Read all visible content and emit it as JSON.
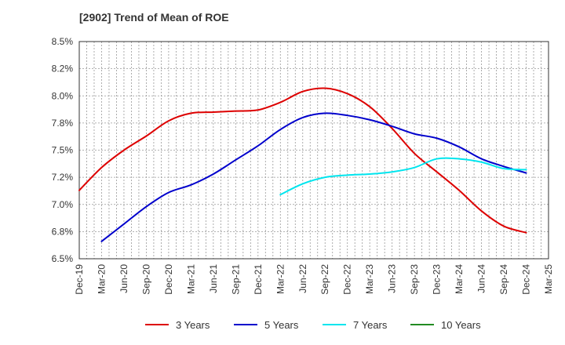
{
  "title": "[2902]  Trend of Mean of ROE",
  "chart_data": {
    "type": "line",
    "title": "[2902]  Trend of Mean of ROE",
    "xlabel": "",
    "ylabel": "",
    "x_ticks": [
      "Dec-19",
      "Mar-20",
      "Jun-20",
      "Sep-20",
      "Dec-20",
      "Mar-21",
      "Jun-21",
      "Sep-21",
      "Dec-21",
      "Mar-22",
      "Jun-22",
      "Sep-22",
      "Dec-22",
      "Mar-23",
      "Jun-23",
      "Sep-23",
      "Dec-23",
      "Mar-24",
      "Jun-24",
      "Sep-24",
      "Dec-24",
      "Mar-25"
    ],
    "y_ticks": [
      "6.5%",
      "6.8%",
      "7.0%",
      "7.2%",
      "7.5%",
      "7.8%",
      "8.0%",
      "8.2%",
      "8.5%"
    ],
    "ylim": [
      6.5,
      8.5
    ],
    "grid": true,
    "legend_position": "bottom",
    "series": [
      {
        "name": "3 Years",
        "color": "#dd0000",
        "points": [
          [
            "Dec-19",
            7.13
          ],
          [
            "Mar-20",
            7.34
          ],
          [
            "Jun-20",
            7.5
          ],
          [
            "Sep-20",
            7.63
          ],
          [
            "Dec-20",
            7.77
          ],
          [
            "Mar-21",
            7.84
          ],
          [
            "Jun-21",
            7.85
          ],
          [
            "Sep-21",
            7.86
          ],
          [
            "Dec-21",
            7.87
          ],
          [
            "Mar-22",
            7.94
          ],
          [
            "Jun-22",
            8.04
          ],
          [
            "Sep-22",
            8.07
          ],
          [
            "Dec-22",
            8.02
          ],
          [
            "Mar-23",
            7.9
          ],
          [
            "Jun-23",
            7.7
          ],
          [
            "Sep-23",
            7.47
          ],
          [
            "Dec-23",
            7.3
          ],
          [
            "Mar-24",
            7.13
          ],
          [
            "Jun-24",
            6.94
          ],
          [
            "Sep-24",
            6.8
          ],
          [
            "Dec-24",
            6.74
          ]
        ]
      },
      {
        "name": "5 Years",
        "color": "#0000cc",
        "points": [
          [
            "Mar-20",
            6.66
          ],
          [
            "Jun-20",
            6.82
          ],
          [
            "Sep-20",
            6.98
          ],
          [
            "Dec-20",
            7.11
          ],
          [
            "Mar-21",
            7.18
          ],
          [
            "Jun-21",
            7.28
          ],
          [
            "Sep-21",
            7.41
          ],
          [
            "Dec-21",
            7.54
          ],
          [
            "Mar-22",
            7.69
          ],
          [
            "Jun-22",
            7.8
          ],
          [
            "Sep-22",
            7.84
          ],
          [
            "Dec-22",
            7.82
          ],
          [
            "Mar-23",
            7.78
          ],
          [
            "Jun-23",
            7.72
          ],
          [
            "Sep-23",
            7.65
          ],
          [
            "Dec-23",
            7.61
          ],
          [
            "Mar-24",
            7.53
          ],
          [
            "Jun-24",
            7.42
          ],
          [
            "Sep-24",
            7.35
          ],
          [
            "Dec-24",
            7.29
          ]
        ]
      },
      {
        "name": "7 Years",
        "color": "#00e5ee",
        "points": [
          [
            "Mar-22",
            7.09
          ],
          [
            "Jun-22",
            7.19
          ],
          [
            "Sep-22",
            7.25
          ],
          [
            "Dec-22",
            7.27
          ],
          [
            "Mar-23",
            7.28
          ],
          [
            "Jun-23",
            7.3
          ],
          [
            "Sep-23",
            7.34
          ],
          [
            "Dec-23",
            7.42
          ],
          [
            "Mar-24",
            7.42
          ],
          [
            "Jun-24",
            7.39
          ],
          [
            "Sep-24",
            7.33
          ],
          [
            "Dec-24",
            7.32
          ]
        ]
      },
      {
        "name": "10 Years",
        "color": "#228b22",
        "points": []
      }
    ]
  }
}
